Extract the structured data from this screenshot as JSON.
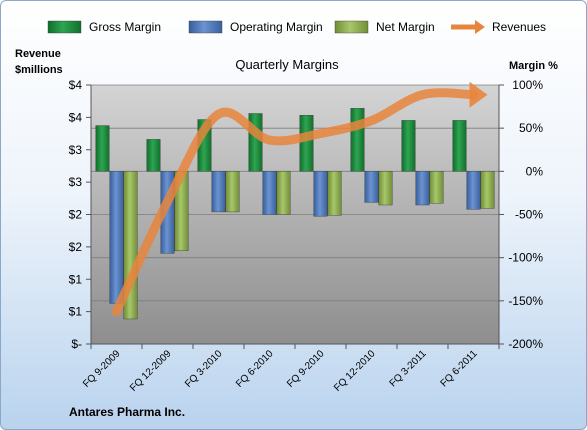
{
  "chart_data": {
    "type": "bar",
    "title": "Quarterly Margins",
    "company": "Antares Pharma Inc.",
    "categories": [
      "FQ 9-2009",
      "FQ 12-2009",
      "FQ 3-2010",
      "FQ 6-2010",
      "FQ 9-2010",
      "FQ 12-2010",
      "FQ 3-2011",
      "FQ 6-2011"
    ],
    "series": [
      {
        "name": "Gross Margin",
        "axis": "right",
        "color": "#1e8c3c",
        "values": [
          53,
          37,
          60,
          67,
          65,
          73,
          59,
          59
        ]
      },
      {
        "name": "Operating Margin",
        "axis": "right",
        "color": "#4e77b8",
        "values": [
          -153,
          -95,
          -47,
          -50,
          -52,
          -36,
          -39,
          -44
        ]
      },
      {
        "name": "Net Margin",
        "axis": "right",
        "color": "#8cad4e",
        "values": [
          -171,
          -92,
          -47,
          -50,
          -51,
          -39,
          -37,
          -43
        ]
      },
      {
        "name": "Revenues",
        "axis": "left",
        "type": "line",
        "color": "#e8853d",
        "values": [
          0.5,
          2.2,
          3.55,
          3.15,
          3.25,
          3.45,
          3.85,
          3.85
        ]
      }
    ],
    "left_axis": {
      "label_line1": "Revenue",
      "label_line2": "$millions",
      "ticks": [
        {
          "v": 0,
          "label": "$-"
        },
        {
          "v": 0.5,
          "label": "$1"
        },
        {
          "v": 1,
          "label": "$1"
        },
        {
          "v": 1.5,
          "label": "$2"
        },
        {
          "v": 2,
          "label": "$2"
        },
        {
          "v": 2.5,
          "label": "$3"
        },
        {
          "v": 3,
          "label": "$3"
        },
        {
          "v": 3.5,
          "label": "$4"
        },
        {
          "v": 4,
          "label": "$4"
        }
      ],
      "ylim": [
        0,
        4
      ]
    },
    "right_axis": {
      "label": "Margin %",
      "ticks": [
        {
          "v": 100,
          "label": "100%"
        },
        {
          "v": 50,
          "label": "50%"
        },
        {
          "v": 0,
          "label": "0%"
        },
        {
          "v": -50,
          "label": "-50%"
        },
        {
          "v": -100,
          "label": "-100%"
        },
        {
          "v": -150,
          "label": "-150%"
        },
        {
          "v": -200,
          "label": "-200%"
        }
      ],
      "ylim": [
        -200,
        100
      ]
    },
    "legend_position": "top",
    "grid": true
  }
}
